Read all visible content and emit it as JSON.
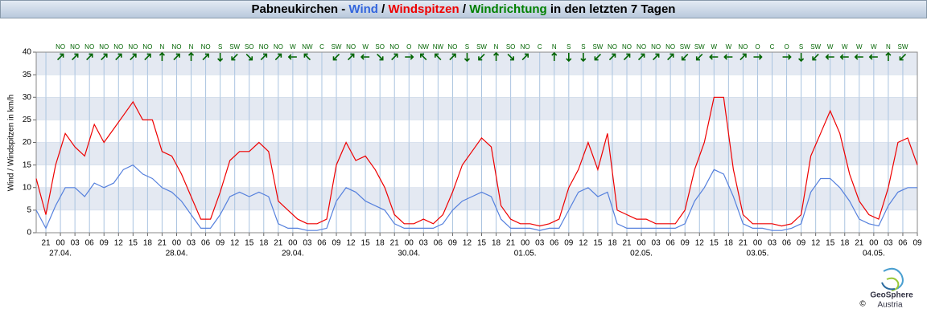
{
  "chart_data": {
    "type": "line",
    "title_parts": [
      {
        "text": "Pabneukirchen - ",
        "color": "#000000"
      },
      {
        "text": "Wind",
        "color": "#3366dd"
      },
      {
        "text": " / ",
        "color": "#000000"
      },
      {
        "text": "Windspitzen",
        "color": "#ee0000"
      },
      {
        "text": " / ",
        "color": "#000000"
      },
      {
        "text": "Windrichtung",
        "color": "#008000"
      },
      {
        "text": " in den letzten 7 Tagen",
        "color": "#000000"
      }
    ],
    "y_label": "Wind / Windspitzen in km/h",
    "x": [
      -5,
      -3,
      -1,
      1,
      3,
      5,
      7,
      9,
      11,
      13,
      15,
      17,
      19,
      21,
      23,
      25,
      27,
      29,
      31,
      33,
      35,
      37,
      39,
      41,
      43,
      45,
      47,
      49,
      51,
      53,
      55,
      57,
      59,
      61,
      63,
      65,
      67,
      69,
      71,
      73,
      75,
      77,
      79,
      81,
      83,
      85,
      87,
      89,
      91,
      93,
      95,
      97,
      99,
      101,
      103,
      105,
      107,
      109,
      111,
      113,
      115,
      117,
      119,
      121,
      123,
      125,
      127,
      129,
      131,
      133,
      135,
      137,
      139,
      141,
      143,
      145,
      147,
      149,
      151,
      153,
      155,
      157,
      159,
      161,
      163,
      165,
      167,
      169,
      171,
      173,
      175,
      177
    ],
    "series": [
      {
        "name": "Windspitzen",
        "color": "#ee0000",
        "values": [
          12,
          4,
          15,
          22,
          19,
          17,
          24,
          20,
          23,
          26,
          29,
          25,
          25,
          18,
          17,
          13,
          8,
          3,
          3,
          9,
          16,
          18,
          18,
          20,
          18,
          7,
          5,
          3,
          2,
          2,
          3,
          15,
          20,
          16,
          17,
          14,
          10,
          4,
          2,
          2,
          3,
          2,
          4,
          9,
          15,
          18,
          21,
          19,
          6,
          3,
          2,
          2,
          1.5,
          2,
          3,
          10,
          14,
          20,
          14,
          22,
          5,
          4,
          3,
          3,
          2,
          2,
          2,
          5,
          14,
          20,
          30,
          30,
          14,
          4,
          2,
          2,
          2,
          1.5,
          2,
          4,
          17,
          22,
          27,
          22,
          13,
          7,
          4,
          3,
          10,
          20,
          21,
          15
        ]
      },
      {
        "name": "Wind",
        "color": "#5580dd",
        "values": [
          5,
          1,
          6,
          10,
          10,
          8,
          11,
          10,
          11,
          14,
          15,
          13,
          12,
          10,
          9,
          7,
          4,
          1,
          1,
          4,
          8,
          9,
          8,
          9,
          8,
          2,
          1,
          1,
          0.5,
          0.5,
          1,
          7,
          10,
          9,
          7,
          6,
          5,
          2,
          1,
          1,
          1,
          1,
          2,
          5,
          7,
          8,
          9,
          8,
          3,
          1,
          1,
          1,
          0.5,
          1,
          1,
          5,
          9,
          10,
          8,
          9,
          2,
          1,
          1,
          1,
          1,
          1,
          1,
          2,
          7,
          10,
          14,
          13,
          8,
          2,
          1,
          1,
          0.5,
          0.5,
          1,
          2,
          9,
          12,
          12,
          10,
          7,
          3,
          2,
          1.5,
          6,
          9,
          10,
          10
        ]
      }
    ],
    "xlim": [
      -5,
      177
    ],
    "xticks": [
      {
        "value": -3,
        "label": "21"
      },
      {
        "value": 0,
        "label": "00"
      },
      {
        "value": 3,
        "label": "03"
      },
      {
        "value": 6,
        "label": "06"
      },
      {
        "value": 9,
        "label": "09"
      },
      {
        "value": 12,
        "label": "12"
      },
      {
        "value": 15,
        "label": "15"
      },
      {
        "value": 18,
        "label": "18"
      },
      {
        "value": 21,
        "label": "21"
      },
      {
        "value": 24,
        "label": "00"
      },
      {
        "value": 27,
        "label": "03"
      },
      {
        "value": 30,
        "label": "06"
      },
      {
        "value": 33,
        "label": "09"
      },
      {
        "value": 36,
        "label": "12"
      },
      {
        "value": 39,
        "label": "15"
      },
      {
        "value": 42,
        "label": "18"
      },
      {
        "value": 45,
        "label": "21"
      },
      {
        "value": 48,
        "label": "00"
      },
      {
        "value": 51,
        "label": "03"
      },
      {
        "value": 54,
        "label": "06"
      },
      {
        "value": 57,
        "label": "09"
      },
      {
        "value": 60,
        "label": "12"
      },
      {
        "value": 63,
        "label": "15"
      },
      {
        "value": 66,
        "label": "18"
      },
      {
        "value": 69,
        "label": "21"
      },
      {
        "value": 72,
        "label": "00"
      },
      {
        "value": 75,
        "label": "03"
      },
      {
        "value": 78,
        "label": "06"
      },
      {
        "value": 81,
        "label": "09"
      },
      {
        "value": 84,
        "label": "12"
      },
      {
        "value": 87,
        "label": "15"
      },
      {
        "value": 90,
        "label": "18"
      },
      {
        "value": 93,
        "label": "21"
      },
      {
        "value": 96,
        "label": "00"
      },
      {
        "value": 99,
        "label": "03"
      },
      {
        "value": 102,
        "label": "06"
      },
      {
        "value": 105,
        "label": "09"
      },
      {
        "value": 108,
        "label": "12"
      },
      {
        "value": 111,
        "label": "15"
      },
      {
        "value": 114,
        "label": "18"
      },
      {
        "value": 117,
        "label": "21"
      },
      {
        "value": 120,
        "label": "00"
      },
      {
        "value": 123,
        "label": "03"
      },
      {
        "value": 126,
        "label": "06"
      },
      {
        "value": 129,
        "label": "09"
      },
      {
        "value": 132,
        "label": "12"
      },
      {
        "value": 135,
        "label": "15"
      },
      {
        "value": 138,
        "label": "18"
      },
      {
        "value": 141,
        "label": "21"
      },
      {
        "value": 144,
        "label": "00"
      },
      {
        "value": 147,
        "label": "03"
      },
      {
        "value": 150,
        "label": "06"
      },
      {
        "value": 153,
        "label": "09"
      },
      {
        "value": 156,
        "label": "12"
      },
      {
        "value": 159,
        "label": "15"
      },
      {
        "value": 162,
        "label": "18"
      },
      {
        "value": 165,
        "label": "21"
      },
      {
        "value": 168,
        "label": "00"
      },
      {
        "value": 171,
        "label": "03"
      },
      {
        "value": 174,
        "label": "06"
      },
      {
        "value": 177,
        "label": "09"
      }
    ],
    "dates": [
      {
        "value": 0,
        "label": "27.04."
      },
      {
        "value": 24,
        "label": "28.04."
      },
      {
        "value": 48,
        "label": "29.04."
      },
      {
        "value": 72,
        "label": "30.04."
      },
      {
        "value": 96,
        "label": "01.05."
      },
      {
        "value": 120,
        "label": "02.05."
      },
      {
        "value": 144,
        "label": "03.05."
      },
      {
        "value": 168,
        "label": "04.05."
      }
    ],
    "ylim": [
      0,
      40
    ],
    "yticks": [
      0,
      5,
      10,
      15,
      20,
      25,
      30,
      35,
      40
    ],
    "grid": true,
    "wind_direction": {
      "color": "#006400",
      "x": [
        0,
        3,
        6,
        9,
        12,
        15,
        18,
        21,
        24,
        27,
        30,
        33,
        36,
        39,
        42,
        45,
        48,
        51,
        54,
        57,
        60,
        63,
        66,
        69,
        72,
        75,
        78,
        81,
        84,
        87,
        90,
        93,
        96,
        99,
        102,
        105,
        108,
        111,
        114,
        117,
        120,
        123,
        126,
        129,
        132,
        135,
        138,
        141,
        144,
        147,
        150,
        153,
        156,
        159,
        162,
        165,
        168,
        171,
        174
      ],
      "labels": [
        "NO",
        "NO",
        "NO",
        "NO",
        "NO",
        "NO",
        "NO",
        "N",
        "NO",
        "N",
        "NO",
        "S",
        "SW",
        "SO",
        "NO",
        "NO",
        "W",
        "NW",
        "C",
        "SW",
        "NO",
        "W",
        "SO",
        "NO",
        "O",
        "NW",
        "NW",
        "NO",
        "S",
        "SW",
        "N",
        "SO",
        "NO",
        "C",
        "N",
        "S",
        "S",
        "SW",
        "NO",
        "NO",
        "NO",
        "NO",
        "NO",
        "SW",
        "SW",
        "W",
        "W",
        "NO",
        "O",
        "C",
        "O",
        "S",
        "SW",
        "W",
        "W",
        "W",
        "W",
        "N",
        "SW"
      ]
    }
  },
  "footer": {
    "logo_line1": "GeoSphere",
    "logo_line2": "Austria",
    "copyright": "©"
  }
}
